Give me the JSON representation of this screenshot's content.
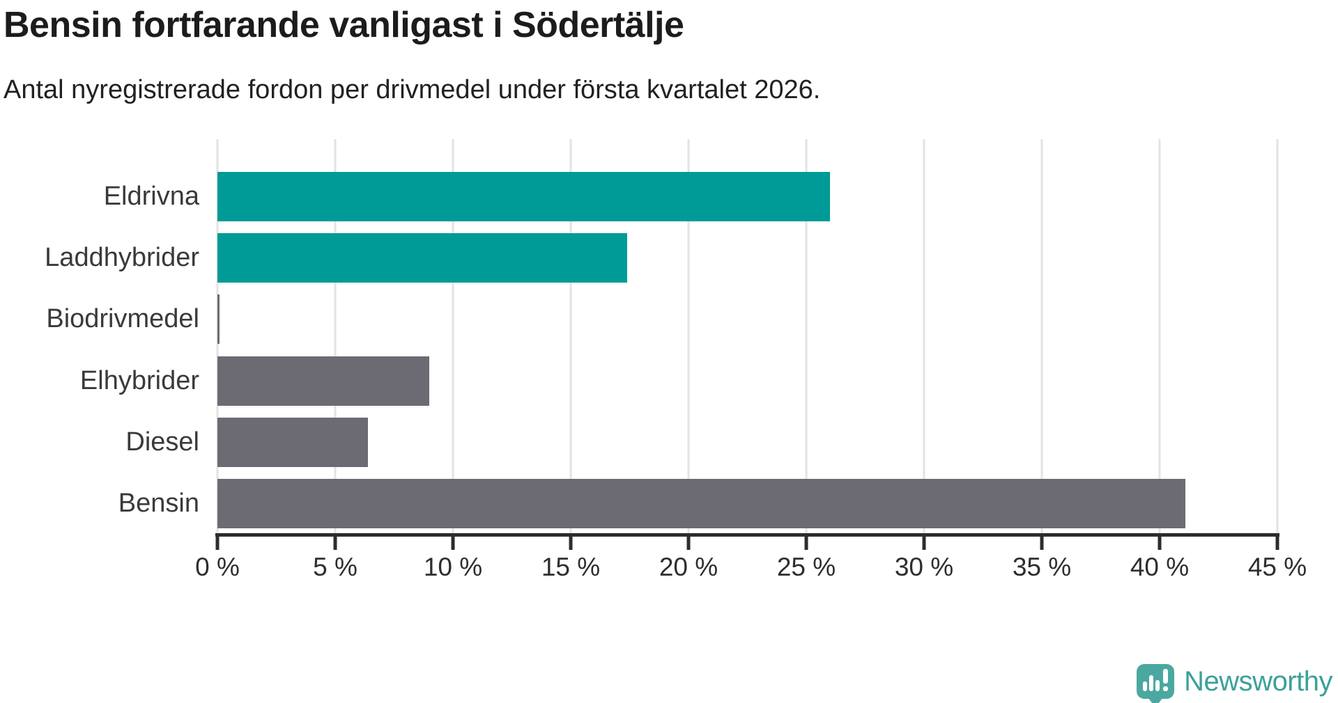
{
  "header": {
    "title": "Bensin fortfarande vanligast i Södertälje",
    "subtitle": "Antal nyregistrerade fordon per drivmedel under första kvartalet 2026."
  },
  "chart_data": {
    "type": "bar",
    "orientation": "horizontal",
    "title": "Bensin fortfarande vanligast i Södertälje",
    "subtitle": "Antal nyregistrerade fordon per drivmedel under första kvartalet 2026.",
    "categories": [
      "Eldrivna",
      "Laddhybrider",
      "Biodrivmedel",
      "Elhybrider",
      "Diesel",
      "Bensin"
    ],
    "values": [
      26.0,
      17.4,
      0.1,
      9.0,
      6.4,
      41.1
    ],
    "unit": "%",
    "bar_colors": [
      "#009b96",
      "#009b96",
      "#6c6b74",
      "#6c6b74",
      "#6c6b74",
      "#6c6b74"
    ],
    "xlabel": "",
    "ylabel": "",
    "xlim": [
      0,
      45
    ],
    "xticks": [
      0,
      5,
      10,
      15,
      20,
      25,
      30,
      35,
      40,
      45
    ],
    "xtick_labels": [
      "0 %",
      "5 %",
      "10 %",
      "15 %",
      "20 %",
      "25 %",
      "30 %",
      "35 %",
      "40 %",
      "45 %"
    ],
    "grid": "vertical-gridlines-on",
    "legend": "none"
  },
  "colors": {
    "accent_teal": "#009b96",
    "neutral_gray": "#6c6b74",
    "axis": "#2d2d2d",
    "gridline": "#e3e3e3",
    "background": "#ffffff"
  },
  "branding": {
    "logo_text": "Newsworthy",
    "logo_icon": "speech-pin-bar-chart-icon",
    "logo_text_color": "#3ba19a",
    "logo_mark_color": "#4ba8a1"
  }
}
